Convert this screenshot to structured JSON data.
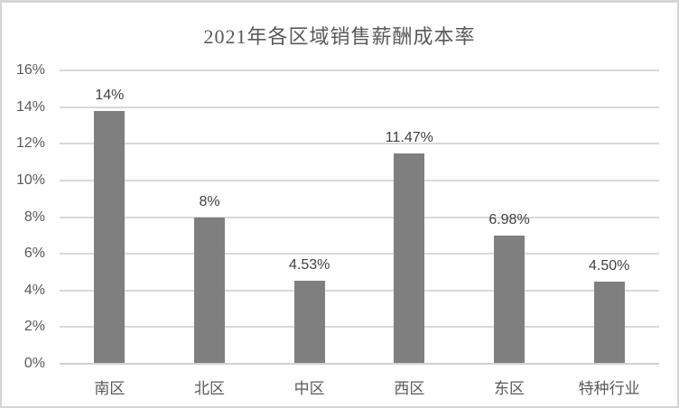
{
  "chart_data": {
    "type": "bar",
    "title": "2021年各区域销售薪酬成本率",
    "categories": [
      "南区",
      "北区",
      "中区",
      "西区",
      "东区",
      "特种行业"
    ],
    "values": [
      13.78,
      8.0,
      4.53,
      11.47,
      6.98,
      4.5
    ],
    "data_labels": [
      "14%",
      "8%",
      "4.53%",
      "11.47%",
      "6.98%",
      "4.50%"
    ],
    "xlabel": "",
    "ylabel": "",
    "ylim": [
      0,
      16
    ],
    "ytick_step": 2,
    "ytick_labels": [
      "0%",
      "2%",
      "4%",
      "6%",
      "8%",
      "10%",
      "12%",
      "14%",
      "16%"
    ],
    "grid": true,
    "legend_position": "none",
    "colors": {
      "bar": "#7f7f7f",
      "gridline": "#d9d9d9",
      "axis_line": "#d0d0d0",
      "title_text": "#595959",
      "axis_text": "#595959",
      "data_label_text": "#404040",
      "frame_border": "#d5d5d5",
      "background": "#ffffff"
    }
  }
}
